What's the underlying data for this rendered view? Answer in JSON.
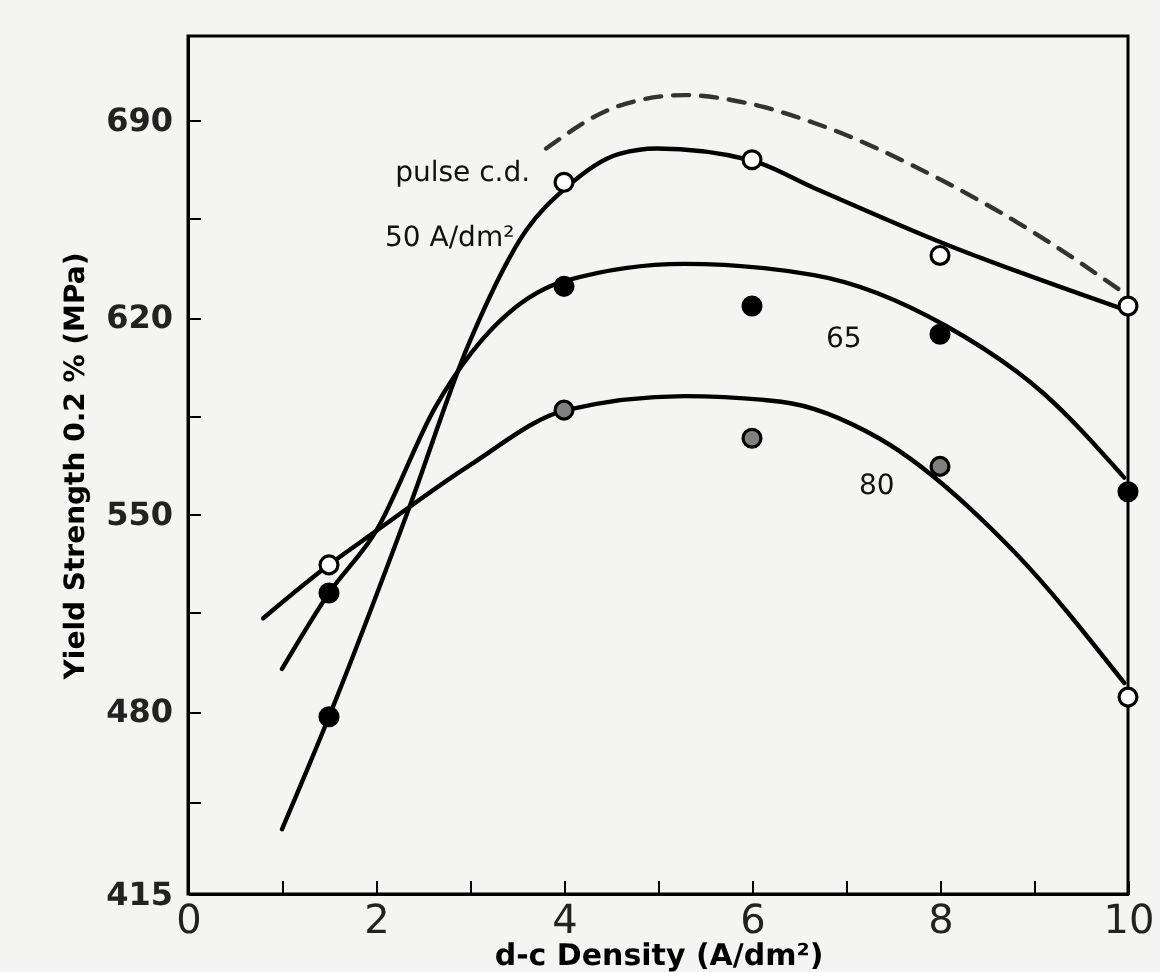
{
  "chart_data": {
    "type": "line",
    "xlabel": "d-c Density (A/dm²)",
    "ylabel": "Yield Strength 0.2 % (MPa)",
    "xlim": [
      0,
      10
    ],
    "xticks": [
      0,
      {
        "value": 1,
        "label": null
      },
      2,
      {
        "value": 3,
        "label": null
      },
      4,
      {
        "value": 5,
        "label": null
      },
      6,
      {
        "value": 7,
        "label": null
      },
      8,
      {
        "value": 9,
        "label": null
      },
      10
    ],
    "ylim": [
      415,
      720
    ],
    "yticks": [
      415,
      {
        "value": 447.5,
        "label": null
      },
      480,
      {
        "value": 515,
        "label": null
      },
      550,
      {
        "value": 585,
        "label": null
      },
      620,
      {
        "value": 655,
        "label": null
      },
      690
    ],
    "grid": false,
    "series": [
      {
        "name": "pulse c.d.",
        "line_style": "dashed",
        "color": "#333333",
        "x": [
          3.81,
          4.57,
          5.28,
          5.97,
          6.67,
          8.06,
          9.1,
          9.9
        ],
        "values": [
          680,
          695,
          699,
          696,
          689,
          668,
          648,
          630
        ]
      },
      {
        "name": "50 A/dm²",
        "color": "#000000",
        "x": [
          1.0,
          1.5,
          2.35,
          2.98,
          3.6,
          4.02,
          4.58,
          4.99,
          5.97,
          6.66,
          8.06,
          9.94
        ],
        "values": [
          438,
          478,
          552,
          610,
          651,
          666,
          678,
          680,
          676,
          666,
          646,
          623
        ]
      },
      {
        "name": "65",
        "color": "#000000",
        "x": [
          1.0,
          1.5,
          2.0,
          2.63,
          4.02,
          5.28,
          6.66,
          8.06,
          9.1,
          9.96
        ],
        "values": [
          495,
          522,
          544,
          588,
          633,
          639,
          635,
          617,
          593,
          563
        ]
      },
      {
        "name": "80",
        "color": "#000000",
        "x": [
          0.8,
          1.5,
          2.0,
          2.98,
          4.02,
          5.28,
          6.31,
          7.35,
          8.75,
          9.96
        ],
        "values": [
          513,
          532,
          544,
          567,
          587,
          592,
          590,
          577,
          538,
          490
        ]
      },
      {
        "type": "scatter",
        "marker": "circle",
        "color": "#ffffff",
        "x": [
          1.5,
          4,
          6,
          8,
          10,
          10
        ],
        "values": [
          532,
          668,
          676,
          642,
          624,
          485
        ]
      },
      {
        "type": "scatter",
        "marker": "circle",
        "color": "#000000",
        "x": [
          1.5,
          1.5,
          4,
          6,
          8,
          10
        ],
        "values": [
          522,
          478,
          631,
          624,
          614,
          558
        ]
      },
      {
        "type": "scatter",
        "marker": "circle",
        "color": "#808080",
        "x": [
          4,
          6,
          8
        ],
        "values": [
          587,
          577,
          567
        ]
      }
    ]
  }
}
